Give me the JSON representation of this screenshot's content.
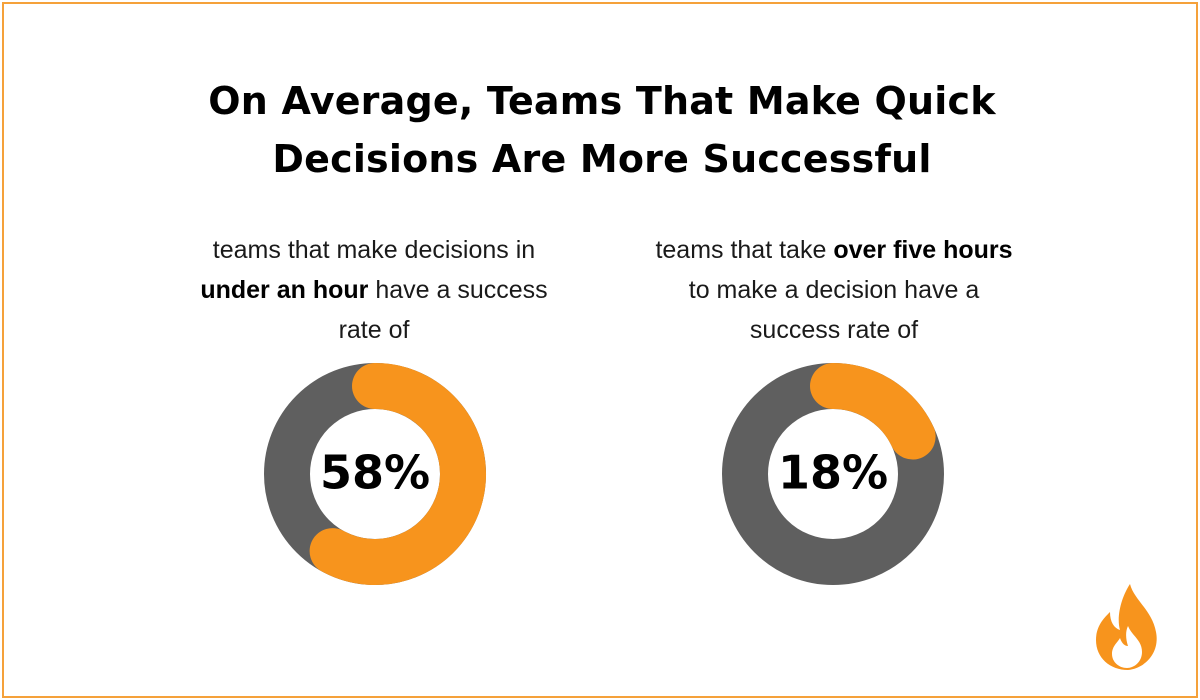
{
  "title": {
    "line1": "On Average, Teams That Make Quick",
    "line2": "Decisions Are More Successful"
  },
  "colors": {
    "accent": "#F7941D",
    "track": "#5F5F5F",
    "border": "#F5A13A",
    "text": "#000000"
  },
  "chart_data": [
    {
      "type": "pie",
      "variant": "donut",
      "caption": {
        "part1": "teams that make decisions in ",
        "bold": "under an hour",
        "part2": " have a success rate of"
      },
      "value": 58,
      "label": "58%",
      "max": 100
    },
    {
      "type": "pie",
      "variant": "donut",
      "caption": {
        "part1": "teams that take ",
        "bold": "over five hours",
        "part2": " to make a decision have a success rate of"
      },
      "value": 18,
      "label": "18%",
      "max": 100
    }
  ],
  "logo": {
    "icon": "flame-icon"
  }
}
